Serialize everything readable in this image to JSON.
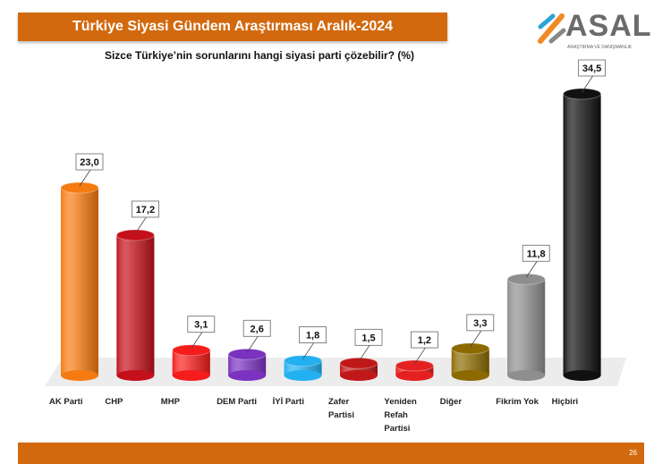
{
  "header": {
    "title": "Türkiye Siyasi Gündem Araştırması Aralık-2024",
    "logo_text": "ASAL",
    "logo_sub": "ARAŞTIRMA VE DANIŞMANLIK"
  },
  "footer": {
    "page_number": "26"
  },
  "chart_data": {
    "type": "bar",
    "title": "Sizce Türkiye’nin  sorunlarını  hangi siyasi parti çözebilir? (%)",
    "categories": [
      "AK Parti",
      "CHP",
      "MHP",
      "DEM Parti",
      "İYİ Parti",
      "Zafer Partisi",
      "Yeniden Refah Partisi",
      "Diğer",
      "Fikrim Yok",
      "Hiçbiri"
    ],
    "category_lines": [
      [
        "AK Parti"
      ],
      [
        "CHP"
      ],
      [
        "MHP"
      ],
      [
        "DEM Parti"
      ],
      [
        "İYİ Parti"
      ],
      [
        "Zafer",
        "Partisi"
      ],
      [
        "Yeniden",
        "Refah",
        "Partisi"
      ],
      [
        "Diğer"
      ],
      [
        "Fikrim Yok"
      ],
      [
        "Hiçbiri"
      ]
    ],
    "values": [
      23.0,
      17.2,
      3.1,
      2.6,
      1.8,
      1.5,
      1.2,
      3.3,
      11.8,
      34.5
    ],
    "data_labels": [
      "23,0",
      "17,2",
      "3,1",
      "2,6",
      "1,8",
      "1,5",
      "1,2",
      "3,3",
      "11,8",
      "34,5"
    ],
    "colors": [
      "#f57a10",
      "#c3101a",
      "#f51c1c",
      "#7a32c0",
      "#22b0f0",
      "#c01818",
      "#e42020",
      "#8c6a00",
      "#8e8e8e",
      "#111111"
    ],
    "style": "3d-cylinder",
    "ylim": [
      0,
      36
    ],
    "grid": false
  }
}
